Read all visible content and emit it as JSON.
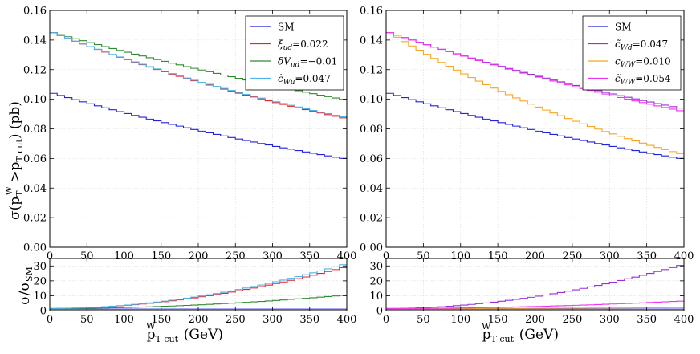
{
  "chart_data": [
    {
      "id": "left",
      "type": "line",
      "step": true,
      "xlim": [
        0,
        400
      ],
      "ylim": [
        0,
        0.16
      ],
      "xticks": [
        0,
        50,
        100,
        150,
        200,
        250,
        300,
        350,
        400
      ],
      "yticks": [
        0.0,
        0.02,
        0.04,
        0.06,
        0.08,
        0.1,
        0.12,
        0.14,
        0.16
      ],
      "ytick_labels": [
        "0.00",
        "0.02",
        "0.04",
        "0.06",
        "0.08",
        "0.10",
        "0.12",
        "0.14",
        "0.16"
      ],
      "ylabel": "σ(pTW > pTcutW) (pb)",
      "xlabel": "",
      "legend_position": "top-right",
      "grid": true,
      "series": [
        {
          "name": "SM",
          "color": "#2222dd",
          "start": 0.104,
          "decay": 0.0141,
          "tail": 0.0
        },
        {
          "name": "ξud = 0.022",
          "color": "#e8202a",
          "start": 0.145,
          "decay": 0.016,
          "tail": 0.021
        },
        {
          "name": "δVud = −0.01",
          "color": "#2e8b2e",
          "start": 0.145,
          "decay": 0.0098,
          "tail": 0.003
        },
        {
          "name": "c̃Wu = 0.047",
          "color": "#4fb3e8",
          "start": 0.145,
          "decay": 0.016,
          "tail": 0.0225
        }
      ]
    },
    {
      "id": "right",
      "type": "line",
      "step": true,
      "xlim": [
        0,
        400
      ],
      "ylim": [
        0,
        0.16
      ],
      "xticks": [
        0,
        50,
        100,
        150,
        200,
        250,
        300,
        350,
        400
      ],
      "yticks": [
        0.0,
        0.02,
        0.04,
        0.06,
        0.08,
        0.1,
        0.12,
        0.14,
        0.16
      ],
      "ytick_labels": [
        "0.00",
        "0.02",
        "0.04",
        "0.06",
        "0.08",
        "0.10",
        "0.12",
        "0.14",
        "0.16"
      ],
      "ylabel": "",
      "xlabel": "",
      "legend_position": "top-right",
      "grid": true,
      "series": [
        {
          "name": "SM",
          "color": "#2222dd",
          "start": 0.104,
          "decay": 0.0141,
          "tail": 0.0
        },
        {
          "name": "c̃Wd = 0.047",
          "color": "#9b30d9",
          "start": 0.145,
          "decay": 0.0135,
          "tail": 0.0205
        },
        {
          "name": "cWW = 0.010",
          "color": "#f5a623",
          "start": 0.145,
          "decay": 0.0215,
          "tail": 0.001
        },
        {
          "name": "c̃WW = 0.054",
          "color": "#ee33ee",
          "start": 0.145,
          "decay": 0.0118,
          "tail": 0.002
        }
      ]
    },
    {
      "id": "left-ratio",
      "type": "line",
      "step": true,
      "xlim": [
        0,
        400
      ],
      "ylim": [
        0,
        35
      ],
      "xticks": [
        0,
        50,
        100,
        150,
        200,
        250,
        300,
        350,
        400
      ],
      "yticks": [
        0,
        10,
        20,
        30
      ],
      "ytick_labels": [
        "0",
        "10",
        "20",
        "30"
      ],
      "ylabel": "σ/σSM",
      "xlabel": "pTcutW (GeV)",
      "grid": true,
      "series": [
        {
          "name": "SM",
          "color": "#2222dd",
          "r0": 1.0,
          "r400": 1.0
        },
        {
          "name": "ξud",
          "color": "#e8202a",
          "r0": 1.4,
          "r400": 29.5
        },
        {
          "name": "δVud",
          "color": "#2e8b2e",
          "r0": 1.4,
          "r400": 10.5
        },
        {
          "name": "c̃Wu",
          "color": "#4fb3e8",
          "r0": 1.4,
          "r400": 31.5
        }
      ]
    },
    {
      "id": "right-ratio",
      "type": "line",
      "step": true,
      "xlim": [
        0,
        400
      ],
      "ylim": [
        0,
        35
      ],
      "xticks": [
        0,
        50,
        100,
        150,
        200,
        250,
        300,
        350,
        400
      ],
      "yticks": [
        0,
        10,
        20,
        30
      ],
      "ytick_labels": [
        "0",
        "10",
        "20",
        "30"
      ],
      "ylabel": "",
      "xlabel": "pTcutW (GeV)",
      "grid": true,
      "series": [
        {
          "name": "SM",
          "color": "#2222dd",
          "r0": 1.0,
          "r400": 1.0
        },
        {
          "name": "c̃Wd",
          "color": "#9b30d9",
          "r0": 1.4,
          "r400": 31.0
        },
        {
          "name": "cWW",
          "color": "#f5a623",
          "r0": 1.4,
          "r400": 2.0
        },
        {
          "name": "c̃WW",
          "color": "#ee33ee",
          "r0": 1.4,
          "r400": 6.5
        }
      ]
    }
  ],
  "legends": {
    "left": [
      {
        "sym": "SM",
        "sub": "",
        "val": ""
      },
      {
        "sym": "ξ",
        "sub": "ud",
        "val": "=0.022"
      },
      {
        "sym": "δV",
        "sub": "ud",
        "val": "=−0.01"
      },
      {
        "sym": "c̃",
        "sub": "Wu",
        "val": "=0.047"
      }
    ],
    "right": [
      {
        "sym": "SM",
        "sub": "",
        "val": ""
      },
      {
        "sym": "c̃",
        "sub": "Wd",
        "val": "=0.047"
      },
      {
        "sym": "c",
        "sub": "WW",
        "val": "=0.010"
      },
      {
        "sym": "c̃",
        "sub": "WW",
        "val": "=0.054"
      }
    ]
  },
  "labels": {
    "main_ylabel_sigma": "σ(p",
    "main_ylabel_T": "T",
    "main_ylabel_W": "W",
    "main_ylabel_gt": " >p",
    "main_ylabel_cut": "T cut",
    "main_ylabel_unit": ") (pb)",
    "ratio_ylabel": "σ/σ",
    "ratio_ylabel_sub": "SM",
    "xlabel_p": "p",
    "xlabel_sub": "T cut",
    "xlabel_sup": "W",
    "xlabel_unit": " (GeV)"
  }
}
